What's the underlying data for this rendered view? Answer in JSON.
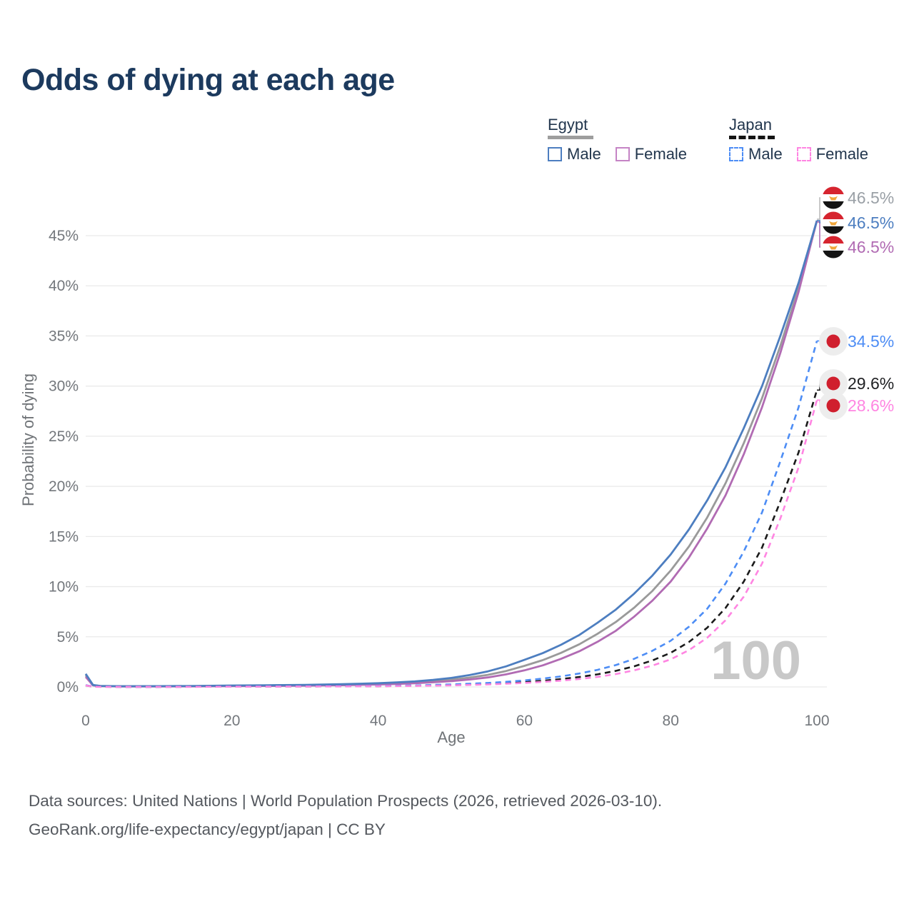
{
  "title": "Odds of dying at each age",
  "legend": {
    "egypt": {
      "label": "Egypt",
      "male": "Male",
      "female": "Female"
    },
    "japan": {
      "label": "Japan",
      "male": "Male",
      "female": "Female"
    }
  },
  "footer": {
    "line1": "Data sources: United Nations | World Population Prospects (2026, retrieved 2026-03-10).",
    "line2": "GeoRank.org/life-expectancy/egypt/japan | CC BY"
  },
  "colors": {
    "title_text": "#1c3a5e",
    "legend_text": "#22364d",
    "egypt_underline": "#9e9e9e",
    "japan_underline": "#141414",
    "grid": "#eaeaea",
    "axis_text": "#73777c",
    "watermark": "#c8c8c8",
    "egypt_flag_red": "#d6242f",
    "egypt_flag_black": "#141414",
    "egypt_flag_gold": "#f0a63c",
    "japan_flag_dot": "#d01f2e",
    "japan_flag_halo": "#ededed"
  },
  "chart_data": {
    "type": "line",
    "title": "Odds of dying at each age",
    "xlabel": "Age",
    "ylabel": "Probability of dying",
    "x_ticks": [
      0,
      20,
      40,
      60,
      80,
      100
    ],
    "y_ticks_pct": [
      0,
      5,
      10,
      15,
      20,
      25,
      30,
      35,
      40,
      45
    ],
    "xlim": [
      0,
      100
    ],
    "ylim_pct": [
      0,
      48
    ],
    "grid": "horizontal-only",
    "legend_position": "top-right",
    "watermark": "100",
    "series": [
      {
        "id": "egypt-all",
        "country": "Egypt",
        "sex": "All",
        "style": "solid",
        "color": "#9a9a9a",
        "end_label": "46.5%",
        "end_label_color": "#9aa0a6",
        "flag": "egypt",
        "points": [
          [
            0,
            1.15
          ],
          [
            1,
            0.18
          ],
          [
            2,
            0.09
          ],
          [
            5,
            0.06
          ],
          [
            10,
            0.07
          ],
          [
            15,
            0.08
          ],
          [
            20,
            0.11
          ],
          [
            25,
            0.14
          ],
          [
            30,
            0.17
          ],
          [
            35,
            0.22
          ],
          [
            40,
            0.3
          ],
          [
            42.5,
            0.37
          ],
          [
            45,
            0.45
          ],
          [
            47.5,
            0.57
          ],
          [
            50,
            0.72
          ],
          [
            52.5,
            0.93
          ],
          [
            55,
            1.2
          ],
          [
            57.5,
            1.59
          ],
          [
            60,
            2.1
          ],
          [
            62.5,
            2.67
          ],
          [
            65,
            3.4
          ],
          [
            67.5,
            4.25
          ],
          [
            70,
            5.3
          ],
          [
            72.5,
            6.47
          ],
          [
            75,
            7.9
          ],
          [
            77.5,
            9.57
          ],
          [
            80,
            11.6
          ],
          [
            82.5,
            14
          ],
          [
            85,
            16.9
          ],
          [
            87.5,
            20.3
          ],
          [
            90,
            24.3
          ],
          [
            92.5,
            28.8
          ],
          [
            95,
            34
          ],
          [
            97.5,
            39.8
          ],
          [
            100,
            46.5
          ]
        ]
      },
      {
        "id": "egypt-female",
        "country": "Egypt",
        "sex": "Female",
        "style": "solid",
        "color": "#b16bb3",
        "end_label": "46.5%",
        "end_label_color": "#b16bb3",
        "flag": "egypt",
        "points": [
          [
            0,
            1
          ],
          [
            1,
            0.15
          ],
          [
            2,
            0.08
          ],
          [
            5,
            0.05
          ],
          [
            10,
            0.05
          ],
          [
            15,
            0.06
          ],
          [
            20,
            0.08
          ],
          [
            25,
            0.1
          ],
          [
            30,
            0.13
          ],
          [
            35,
            0.17
          ],
          [
            40,
            0.24
          ],
          [
            42.5,
            0.29
          ],
          [
            45,
            0.36
          ],
          [
            47.5,
            0.46
          ],
          [
            50,
            0.58
          ],
          [
            52.5,
            0.74
          ],
          [
            55,
            0.95
          ],
          [
            57.5,
            1.25
          ],
          [
            60,
            1.65
          ],
          [
            62.5,
            2.15
          ],
          [
            65,
            2.8
          ],
          [
            67.5,
            3.55
          ],
          [
            70,
            4.5
          ],
          [
            72.5,
            5.6
          ],
          [
            75,
            7
          ],
          [
            77.5,
            8.6
          ],
          [
            80,
            10.5
          ],
          [
            82.5,
            12.9
          ],
          [
            85,
            15.8
          ],
          [
            87.5,
            19.1
          ],
          [
            90,
            23.2
          ],
          [
            92.5,
            27.9
          ],
          [
            95,
            33.3
          ],
          [
            97.5,
            39.4
          ],
          [
            100,
            46.5
          ]
        ]
      },
      {
        "id": "egypt-male",
        "country": "Egypt",
        "sex": "Male",
        "style": "solid",
        "color": "#4d7ec0",
        "end_label": "46.5%",
        "end_label_color": "#4d7ec0",
        "flag": "egypt",
        "points": [
          [
            0,
            1.3
          ],
          [
            1,
            0.2
          ],
          [
            2,
            0.1
          ],
          [
            5,
            0.07
          ],
          [
            10,
            0.08
          ],
          [
            15,
            0.1
          ],
          [
            20,
            0.14
          ],
          [
            25,
            0.17
          ],
          [
            30,
            0.21
          ],
          [
            35,
            0.27
          ],
          [
            40,
            0.37
          ],
          [
            42.5,
            0.45
          ],
          [
            45,
            0.55
          ],
          [
            47.5,
            0.7
          ],
          [
            50,
            0.9
          ],
          [
            52.5,
            1.18
          ],
          [
            55,
            1.55
          ],
          [
            57.5,
            2.05
          ],
          [
            60,
            2.7
          ],
          [
            62.5,
            3.37
          ],
          [
            65,
            4.2
          ],
          [
            67.5,
            5.18
          ],
          [
            70,
            6.4
          ],
          [
            72.5,
            7.71
          ],
          [
            75,
            9.3
          ],
          [
            77.5,
            11.1
          ],
          [
            80,
            13.2
          ],
          [
            82.5,
            15.7
          ],
          [
            85,
            18.6
          ],
          [
            87.5,
            21.9
          ],
          [
            90,
            25.8
          ],
          [
            92.5,
            30
          ],
          [
            95,
            35
          ],
          [
            97.5,
            40.3
          ],
          [
            100,
            46.5
          ]
        ]
      },
      {
        "id": "japan-all",
        "country": "Japan",
        "sex": "All",
        "style": "dashed",
        "color": "#1b1b1b",
        "end_label": "29.6%",
        "end_label_color": "#202124",
        "flag": "japan",
        "points": [
          [
            0,
            0.16
          ],
          [
            1,
            0.03
          ],
          [
            2,
            0.02
          ],
          [
            5,
            0.01
          ],
          [
            10,
            0.01
          ],
          [
            15,
            0.02
          ],
          [
            20,
            0.03
          ],
          [
            25,
            0.04
          ],
          [
            30,
            0.05
          ],
          [
            35,
            0.06
          ],
          [
            40,
            0.08
          ],
          [
            45,
            0.12
          ],
          [
            50,
            0.19
          ],
          [
            55,
            0.3
          ],
          [
            57.5,
            0.38
          ],
          [
            60,
            0.48
          ],
          [
            62.5,
            0.61
          ],
          [
            65,
            0.78
          ],
          [
            67.5,
            0.99
          ],
          [
            70,
            1.25
          ],
          [
            72.5,
            1.6
          ],
          [
            75,
            2.05
          ],
          [
            77.5,
            2.64
          ],
          [
            80,
            3.4
          ],
          [
            82.5,
            4.48
          ],
          [
            85,
            5.9
          ],
          [
            87.5,
            7.87
          ],
          [
            90,
            10.5
          ],
          [
            92.5,
            13.9
          ],
          [
            95,
            18.5
          ],
          [
            97.5,
            23.4
          ],
          [
            100,
            29.6
          ]
        ]
      },
      {
        "id": "japan-male",
        "country": "Japan",
        "sex": "Male",
        "style": "dashed",
        "color": "#4d8df5",
        "end_label": "34.5%",
        "end_label_color": "#4d8df5",
        "flag": "japan",
        "points": [
          [
            0,
            0.18
          ],
          [
            1,
            0.03
          ],
          [
            2,
            0.02
          ],
          [
            5,
            0.01
          ],
          [
            10,
            0.01
          ],
          [
            15,
            0.02
          ],
          [
            20,
            0.04
          ],
          [
            25,
            0.05
          ],
          [
            30,
            0.06
          ],
          [
            35,
            0.08
          ],
          [
            40,
            0.1
          ],
          [
            45,
            0.15
          ],
          [
            50,
            0.25
          ],
          [
            55,
            0.4
          ],
          [
            57.5,
            0.51
          ],
          [
            60,
            0.65
          ],
          [
            62.5,
            0.83
          ],
          [
            65,
            1.05
          ],
          [
            67.5,
            1.34
          ],
          [
            70,
            1.7
          ],
          [
            72.5,
            2.18
          ],
          [
            75,
            2.8
          ],
          [
            77.5,
            3.6
          ],
          [
            80,
            4.6
          ],
          [
            82.5,
            6
          ],
          [
            85,
            7.8
          ],
          [
            87.5,
            10.3
          ],
          [
            90,
            13.5
          ],
          [
            92.5,
            17.4
          ],
          [
            95,
            22.5
          ],
          [
            97.5,
            27.9
          ],
          [
            100,
            34.5
          ]
        ]
      },
      {
        "id": "japan-female",
        "country": "Japan",
        "sex": "Female",
        "style": "dashed",
        "color": "#ff85e2",
        "end_label": "28.6%",
        "end_label_color": "#ff85e2",
        "flag": "japan",
        "points": [
          [
            0,
            0.15
          ],
          [
            1,
            0.02
          ],
          [
            2,
            0.01
          ],
          [
            5,
            0.01
          ],
          [
            10,
            0.01
          ],
          [
            15,
            0.01
          ],
          [
            20,
            0.02
          ],
          [
            25,
            0.03
          ],
          [
            30,
            0.04
          ],
          [
            35,
            0.05
          ],
          [
            40,
            0.07
          ],
          [
            45,
            0.1
          ],
          [
            50,
            0.16
          ],
          [
            55,
            0.25
          ],
          [
            57.5,
            0.32
          ],
          [
            60,
            0.4
          ],
          [
            62.5,
            0.5
          ],
          [
            65,
            0.63
          ],
          [
            67.5,
            0.79
          ],
          [
            70,
            1
          ],
          [
            72.5,
            1.28
          ],
          [
            75,
            1.65
          ],
          [
            77.5,
            2.13
          ],
          [
            80,
            2.75
          ],
          [
            82.5,
            3.67
          ],
          [
            85,
            4.9
          ],
          [
            87.5,
            6.64
          ],
          [
            90,
            9
          ],
          [
            92.5,
            12.3
          ],
          [
            95,
            16.8
          ],
          [
            97.5,
            21.9
          ],
          [
            100,
            28.6
          ]
        ]
      }
    ]
  }
}
